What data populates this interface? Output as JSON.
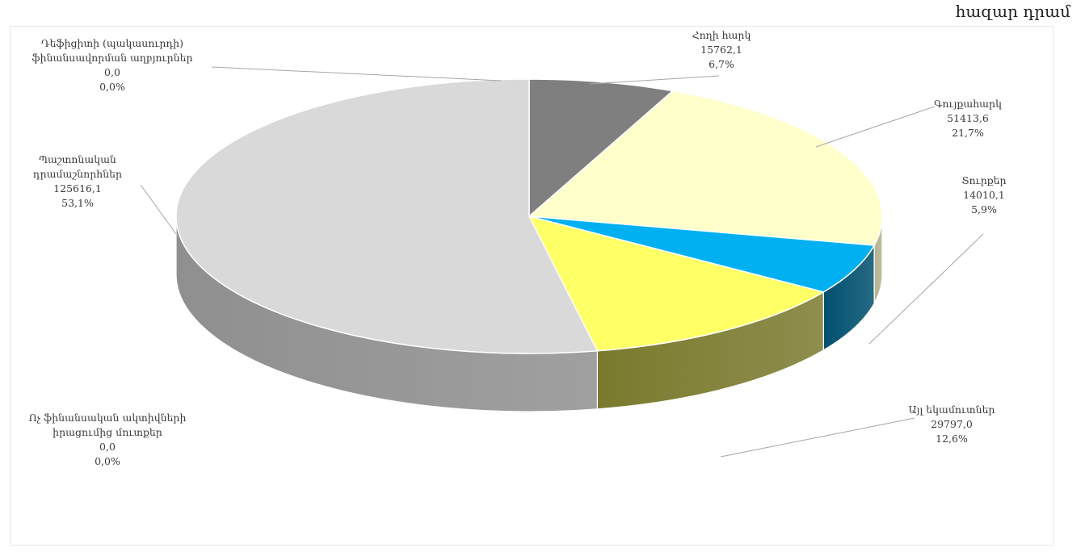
{
  "unit_label": "հազար դրամ",
  "chart_data": {
    "type": "pie",
    "title": "",
    "unit": "հազար դրամ",
    "legend": "none",
    "slices": [
      {
        "name": "Հողի հարկ",
        "value": 15762.1,
        "value_label": "15762,1",
        "percent_label": "6,7%",
        "color": "#7f7f7f",
        "side_color": "#5a5a5a"
      },
      {
        "name": "Գույքահարկ",
        "value": 51413.6,
        "value_label": "51413,6",
        "percent_label": "21,7%",
        "color": "#ffffcc",
        "side_color": "#b3b38f"
      },
      {
        "name": "Տուրքեր",
        "value": 14010.1,
        "value_label": "14010,1",
        "percent_label": "5,9%",
        "color": "#00b0f0",
        "side_color": "#00506e"
      },
      {
        "name": "Այլ եկամուտներ",
        "value": 29797.0,
        "value_label": "29797,0",
        "percent_label": "12,6%",
        "color": "#ffff66",
        "side_color": "#7a7a2e"
      },
      {
        "name": "Ոչ ֆինանսական ակտիվների իրացումից մուտքեր",
        "value": 0.0,
        "value_label": "0,0",
        "percent_label": "0,0%",
        "color": "#bfbfbf",
        "side_color": "#8c8c8c"
      },
      {
        "name": "Պաշտոնական դրամաշնորհներ",
        "value": 125616.1,
        "value_label": "125616,1",
        "percent_label": "53,1%",
        "color": "#d9d9d9",
        "side_color": "#8f8f8f"
      },
      {
        "name": "Դեֆիցիտի (պակասուրդի) ֆինանսավորման աղբյուրներ",
        "value": 0.0,
        "value_label": "0,0",
        "percent_label": "0,0%",
        "color": "#a6a6a6",
        "side_color": "#7f7f7f"
      }
    ]
  }
}
